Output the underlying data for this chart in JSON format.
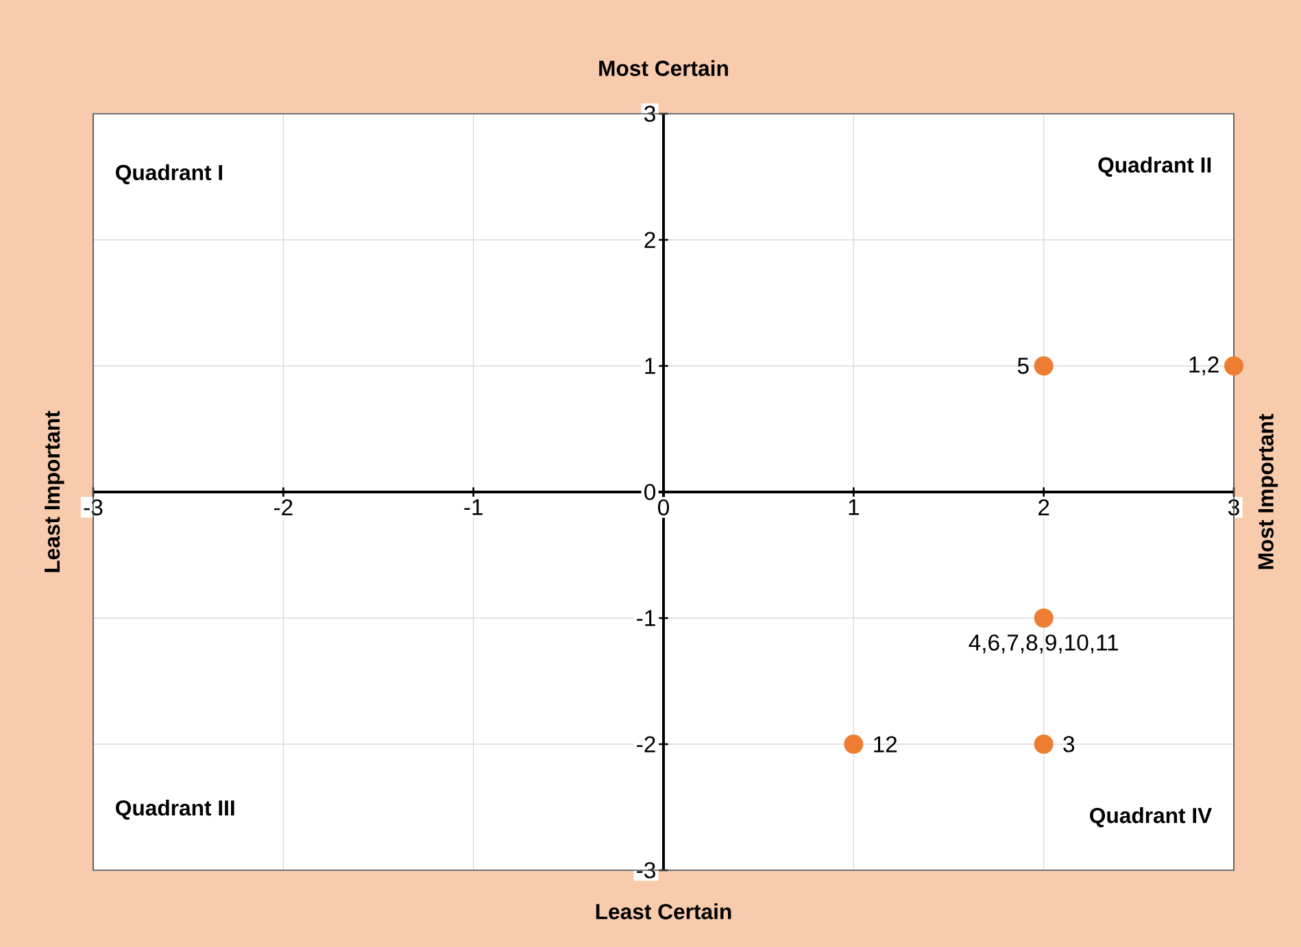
{
  "chart_data": {
    "type": "scatter",
    "title": "Most Certain",
    "xlabel": "Least Certain",
    "ylabel": "Least Important",
    "y2label": "Most Important",
    "annotations": [
      "Quadrant I",
      "Quadrant II",
      "Quadrant III",
      "Quadrant IV",
      {
        "text": "5",
        "x": 2,
        "y": 1
      },
      {
        "text": "1,2",
        "x": 3,
        "y": 1
      },
      {
        "text": "4,6,7,8,9,10,11",
        "x": 2,
        "y": -1
      },
      {
        "text": "12",
        "x": 1,
        "y": -2
      },
      {
        "text": "3",
        "x": 2,
        "y": -2
      }
    ],
    "x": [
      2,
      3,
      2,
      1,
      2
    ],
    "values": [
      1,
      1,
      -1,
      -2,
      -2
    ],
    "color": "#ed7d31",
    "marker": "circle",
    "grid": true,
    "xlim": [
      -3,
      3
    ],
    "ylim": [
      -3,
      3
    ],
    "xticks": [
      -3,
      -2,
      -1,
      0,
      1,
      2,
      3
    ],
    "yticks": [
      -3,
      -2,
      -1,
      0,
      1,
      2,
      3
    ]
  }
}
